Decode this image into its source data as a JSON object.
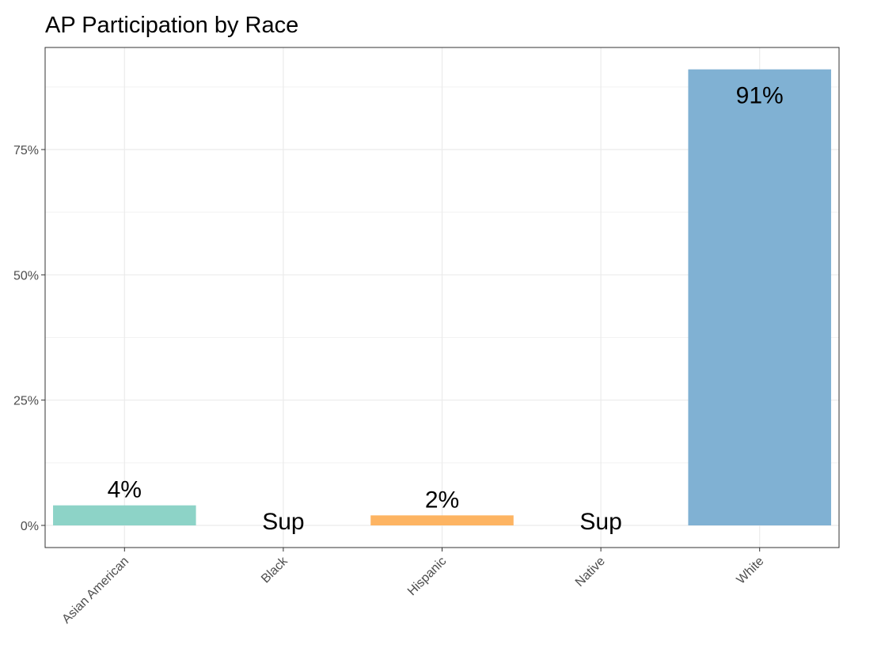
{
  "chart_data": {
    "type": "bar",
    "title": "AP Participation by Race",
    "xlabel": "",
    "ylabel": "",
    "categories": [
      "Asian American",
      "Black",
      "Hispanic",
      "Native",
      "White"
    ],
    "values": [
      4,
      0,
      2,
      0,
      91
    ],
    "data_labels": [
      "4%",
      "Sup",
      "2%",
      "Sup",
      "91%"
    ],
    "colors": [
      "#8dd3c7",
      "#ffffff",
      "#fdb462",
      "#ffffff",
      "#80b1d3"
    ],
    "ylim": [
      0,
      95
    ],
    "yticks": [
      0,
      25,
      50,
      75
    ],
    "ytick_labels": [
      "0%",
      "25%",
      "50%",
      "75%"
    ],
    "grid": true,
    "legend": "none"
  }
}
